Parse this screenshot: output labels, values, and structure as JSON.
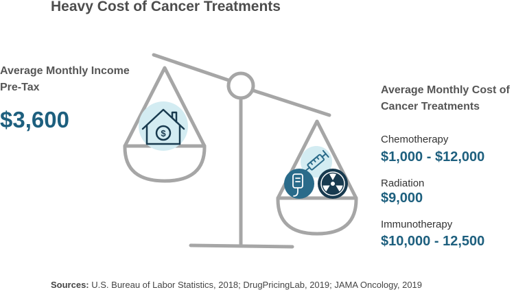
{
  "title": "Heavy Cost of Cancer Treatments",
  "income": {
    "label": "Average Monthly Income Pre-Tax",
    "value": "$3,600"
  },
  "costs": {
    "heading": "Average Monthly Cost of Cancer Treatments",
    "items": [
      {
        "name": "Chemotherapy",
        "range": "$1,000 - $12,000"
      },
      {
        "name": "Radiation",
        "range": "$9,000"
      },
      {
        "name": "Immunotherapy",
        "range": "$10,000 - 12,500"
      }
    ]
  },
  "sources": {
    "label": "Sources:",
    "text": " U.S. Bureau of Labor Statistics, 2018; DrugPricingLab, 2019; JAMA Oncology, 2019"
  },
  "icons": {
    "left_pan": "house-dollar-icon",
    "right_pan": [
      "syringe-icon",
      "iv-bag-icon",
      "radiation-icon"
    ]
  },
  "colors": {
    "accent": "#1d5f7e",
    "scale_gray": "#a6a6a6",
    "icon_bg": "#d3ecf2",
    "icon_navy": "#183a4f"
  }
}
